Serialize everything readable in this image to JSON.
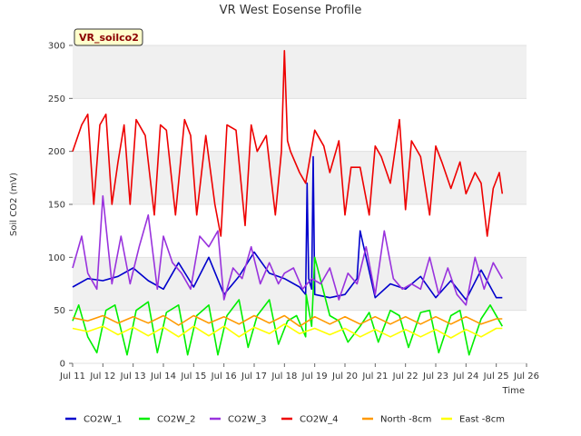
{
  "chart_data": {
    "type": "line",
    "title": "VR West Eosense Profile",
    "xlabel": "Time",
    "ylabel": "Soil CO2 (mV)",
    "tag": "VR_soilco2",
    "ylim": [
      0,
      300
    ],
    "yticks": [
      0,
      50,
      100,
      150,
      200,
      250,
      300
    ],
    "xlim": [
      11,
      26
    ],
    "xticks": [
      {
        "v": 11,
        "label": "Jul 11"
      },
      {
        "v": 12,
        "label": "Jul 12"
      },
      {
        "v": 13,
        "label": "Jul 13"
      },
      {
        "v": 14,
        "label": "Jul 14"
      },
      {
        "v": 15,
        "label": "Jul 15"
      },
      {
        "v": 16,
        "label": "Jul 16"
      },
      {
        "v": 17,
        "label": "Jul 17"
      },
      {
        "v": 18,
        "label": "Jul 18"
      },
      {
        "v": 19,
        "label": "Jul 19"
      },
      {
        "v": 20,
        "label": "Jul 20"
      },
      {
        "v": 21,
        "label": "Jul 21"
      },
      {
        "v": 22,
        "label": "Jul 22"
      },
      {
        "v": 23,
        "label": "Jul 23"
      },
      {
        "v": 24,
        "label": "Jul 24"
      },
      {
        "v": 25,
        "label": "Jul 25"
      },
      {
        "v": 26,
        "label": "Jul 26"
      }
    ],
    "grid": true,
    "legend_position": "bottom",
    "series": [
      {
        "name": "CO2W_1",
        "color": "#0000cc",
        "x": [
          11.0,
          11.5,
          12.0,
          12.5,
          13.0,
          13.5,
          14.0,
          14.5,
          15.0,
          15.5,
          16.0,
          16.5,
          17.0,
          17.5,
          18.0,
          18.5,
          18.7,
          18.75,
          18.8,
          18.9,
          18.95,
          19.0,
          19.5,
          20.0,
          20.4,
          20.5,
          21.0,
          21.5,
          22.0,
          22.5,
          23.0,
          23.5,
          24.0,
          24.5,
          25.0,
          25.2
        ],
        "y": [
          72,
          80,
          78,
          82,
          90,
          78,
          70,
          95,
          72,
          100,
          65,
          82,
          105,
          85,
          80,
          72,
          65,
          170,
          80,
          70,
          195,
          65,
          62,
          65,
          80,
          125,
          62,
          75,
          70,
          82,
          62,
          78,
          60,
          88,
          62,
          62
        ]
      },
      {
        "name": "CO2W_2",
        "color": "#00ee00",
        "x": [
          11.0,
          11.2,
          11.5,
          11.8,
          12.1,
          12.4,
          12.8,
          13.1,
          13.5,
          13.8,
          14.1,
          14.5,
          14.8,
          15.1,
          15.5,
          15.8,
          16.1,
          16.5,
          16.8,
          17.1,
          17.5,
          17.8,
          18.1,
          18.4,
          18.7,
          18.72,
          18.9,
          19.0,
          19.5,
          19.8,
          20.1,
          20.5,
          20.8,
          21.1,
          21.5,
          21.8,
          22.1,
          22.5,
          22.8,
          23.1,
          23.5,
          23.8,
          24.1,
          24.5,
          24.8,
          25.2
        ],
        "y": [
          40,
          55,
          25,
          10,
          50,
          55,
          8,
          50,
          58,
          10,
          48,
          55,
          8,
          45,
          55,
          8,
          45,
          60,
          15,
          45,
          60,
          18,
          40,
          45,
          25,
          65,
          35,
          100,
          45,
          40,
          20,
          35,
          48,
          20,
          50,
          45,
          15,
          48,
          50,
          10,
          45,
          50,
          8,
          42,
          55,
          35
        ]
      },
      {
        "name": "CO2W_3",
        "color": "#9933dd",
        "x": [
          11.0,
          11.3,
          11.5,
          11.8,
          12.0,
          12.3,
          12.6,
          12.9,
          13.2,
          13.5,
          13.8,
          14.0,
          14.3,
          14.6,
          14.9,
          15.2,
          15.5,
          15.8,
          16.0,
          16.3,
          16.6,
          16.9,
          17.2,
          17.5,
          17.8,
          18.0,
          18.3,
          18.6,
          18.9,
          19.2,
          19.5,
          19.8,
          20.1,
          20.4,
          20.7,
          21.0,
          21.3,
          21.6,
          21.9,
          22.2,
          22.5,
          22.8,
          23.1,
          23.4,
          23.7,
          24.0,
          24.3,
          24.6,
          24.9,
          25.2
        ],
        "y": [
          90,
          120,
          85,
          70,
          158,
          75,
          120,
          75,
          110,
          140,
          70,
          120,
          95,
          85,
          70,
          120,
          110,
          125,
          60,
          90,
          80,
          110,
          75,
          95,
          75,
          85,
          90,
          70,
          80,
          75,
          90,
          60,
          85,
          75,
          110,
          65,
          125,
          80,
          70,
          75,
          70,
          100,
          65,
          90,
          65,
          55,
          100,
          70,
          95,
          80
        ]
      },
      {
        "name": "CO2W_4",
        "color": "#ee0000",
        "x": [
          11.0,
          11.3,
          11.5,
          11.7,
          11.9,
          12.1,
          12.3,
          12.5,
          12.7,
          12.9,
          13.1,
          13.4,
          13.7,
          13.9,
          14.1,
          14.4,
          14.7,
          14.9,
          15.1,
          15.4,
          15.7,
          15.9,
          16.1,
          16.4,
          16.7,
          16.9,
          17.1,
          17.4,
          17.7,
          17.9,
          18.0,
          18.1,
          18.2,
          18.5,
          18.7,
          19.0,
          19.3,
          19.5,
          19.8,
          20.0,
          20.2,
          20.5,
          20.8,
          21.0,
          21.2,
          21.5,
          21.8,
          22.0,
          22.2,
          22.5,
          22.8,
          23.0,
          23.2,
          23.5,
          23.8,
          24.0,
          24.3,
          24.5,
          24.7,
          24.9,
          25.1,
          25.2
        ],
        "y": [
          200,
          225,
          235,
          150,
          225,
          235,
          150,
          190,
          225,
          150,
          230,
          215,
          140,
          225,
          220,
          140,
          230,
          215,
          140,
          215,
          150,
          120,
          225,
          220,
          130,
          225,
          200,
          215,
          140,
          200,
          295,
          210,
          200,
          180,
          170,
          220,
          205,
          180,
          210,
          140,
          185,
          185,
          140,
          205,
          195,
          170,
          230,
          145,
          210,
          195,
          140,
          205,
          190,
          165,
          190,
          160,
          180,
          170,
          120,
          165,
          180,
          160
        ]
      },
      {
        "name": "North -8cm",
        "color": "#ff9900",
        "x": [
          11.0,
          11.5,
          12.0,
          12.5,
          13.0,
          13.5,
          14.0,
          14.5,
          15.0,
          15.5,
          16.0,
          16.5,
          17.0,
          17.5,
          18.0,
          18.5,
          19.0,
          19.5,
          20.0,
          20.5,
          21.0,
          21.5,
          22.0,
          22.5,
          23.0,
          23.5,
          24.0,
          24.5,
          25.0,
          25.2
        ],
        "y": [
          43,
          40,
          45,
          38,
          44,
          38,
          45,
          36,
          45,
          38,
          44,
          37,
          45,
          38,
          45,
          35,
          44,
          37,
          44,
          37,
          44,
          37,
          44,
          37,
          44,
          37,
          44,
          37,
          42,
          42
        ]
      },
      {
        "name": "East -8cm",
        "color": "#ffff00",
        "x": [
          11.0,
          11.5,
          12.0,
          12.5,
          13.0,
          13.5,
          14.0,
          14.5,
          15.0,
          15.5,
          16.0,
          16.5,
          17.0,
          17.5,
          18.0,
          18.5,
          19.0,
          19.5,
          20.0,
          20.5,
          21.0,
          21.5,
          22.0,
          22.5,
          23.0,
          23.5,
          24.0,
          24.5,
          25.0,
          25.2
        ],
        "y": [
          33,
          30,
          35,
          27,
          34,
          26,
          34,
          25,
          35,
          26,
          35,
          25,
          34,
          28,
          37,
          28,
          33,
          27,
          33,
          25,
          32,
          25,
          32,
          25,
          32,
          24,
          32,
          25,
          33,
          33
        ]
      }
    ]
  }
}
